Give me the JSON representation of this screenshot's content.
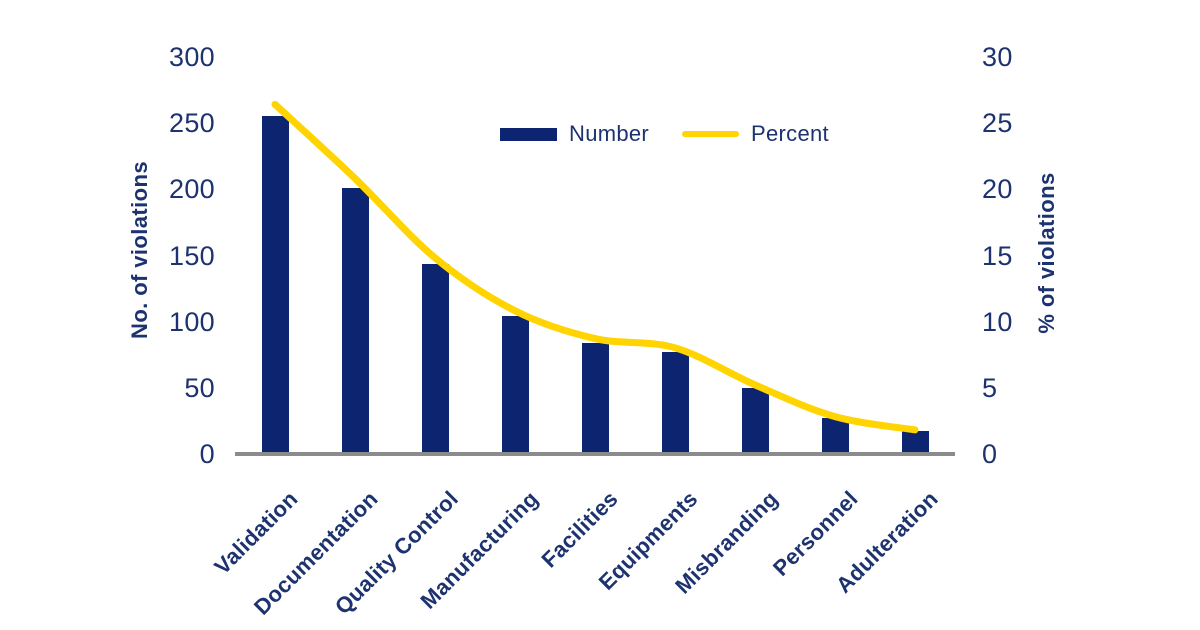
{
  "chart_data": {
    "type": "bar",
    "subtype": "pareto-combo-bar-line",
    "categories": [
      "Validation",
      "Documentation",
      "Quality Control",
      "Manufacturing",
      "Facilities",
      "Equipments",
      "Misbranding",
      "Personnel",
      "Adulteration"
    ],
    "series": [
      {
        "name": "Number",
        "type": "bar",
        "axis": "left",
        "values": [
          256,
          202,
          144,
          105,
          85,
          78,
          51,
          28,
          18
        ]
      },
      {
        "name": "Percent",
        "type": "line",
        "axis": "right",
        "values": [
          26.5,
          20.9,
          14.9,
          10.9,
          8.8,
          8.1,
          5.3,
          2.9,
          1.9
        ]
      }
    ],
    "title": "",
    "xlabel": "",
    "ylabel_left": "No. of violations",
    "ylabel_right": "% of violations",
    "ylim_left": [
      0,
      300
    ],
    "ylim_right": [
      0,
      30
    ],
    "yticks_left": [
      0,
      50,
      100,
      150,
      200,
      250,
      300
    ],
    "yticks_right": [
      0,
      5,
      10,
      15,
      20,
      25,
      30
    ],
    "grid": false,
    "legend_position": "top-center",
    "colors": {
      "bar": "#0d2471",
      "line": "#ffd400",
      "text": "#1d336f",
      "axis_line": "#8b8b8b",
      "background": "#ffffff"
    }
  }
}
